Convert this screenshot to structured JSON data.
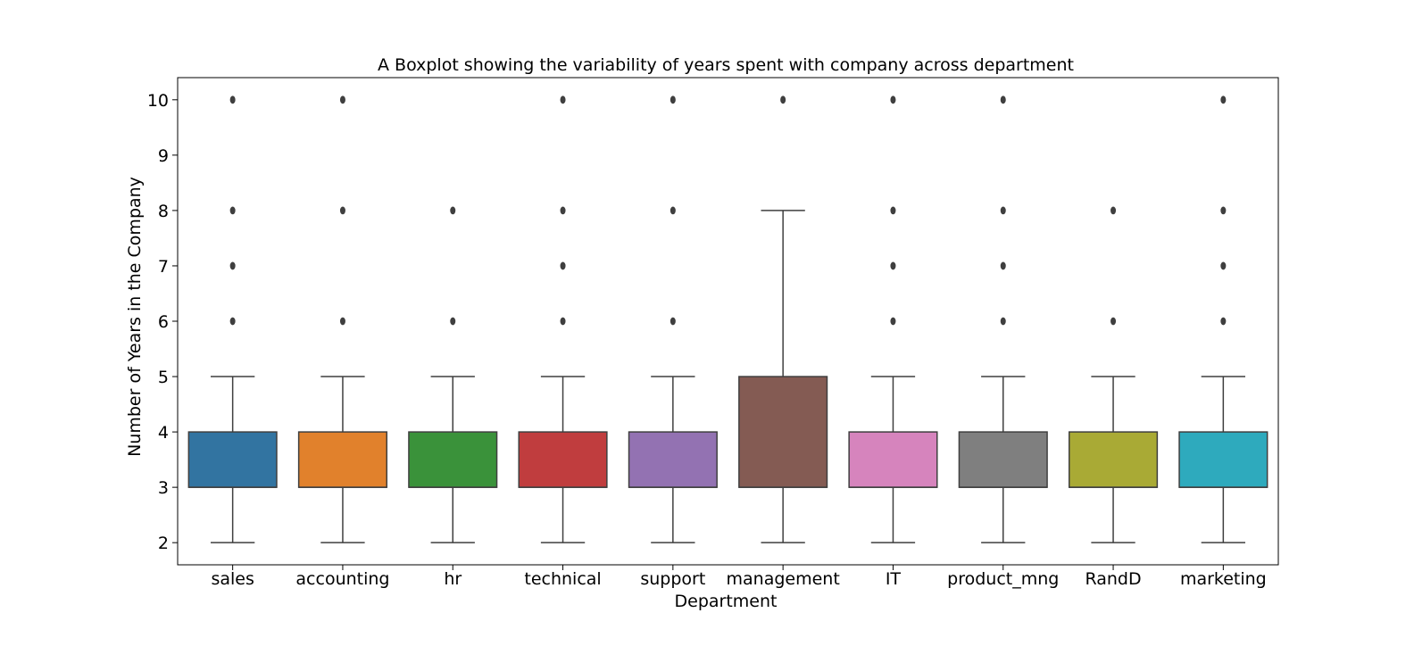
{
  "chart_data": {
    "type": "boxplot",
    "title": "A Boxplot showing the variability of years spent with company across department",
    "xlabel": "Department",
    "ylabel": "Number of Years in the Company",
    "ylim": [
      1.6,
      10.4
    ],
    "yticks": [
      2,
      3,
      4,
      5,
      6,
      7,
      8,
      9,
      10
    ],
    "grid": false,
    "categories": [
      "sales",
      "accounting",
      "hr",
      "technical",
      "support",
      "management",
      "IT",
      "product_mng",
      "RandD",
      "marketing"
    ],
    "colors": [
      "#3274a1",
      "#e1812c",
      "#3a923a",
      "#c03d3e",
      "#9372b2",
      "#845b53",
      "#d684bd",
      "#7f7f7f",
      "#a9aa35",
      "#2eaabd"
    ],
    "boxes": [
      {
        "category": "sales",
        "whisker_low": 2,
        "q1": 3,
        "median": 3,
        "q3": 4,
        "whisker_high": 5,
        "outliers": [
          6,
          7,
          8,
          10
        ]
      },
      {
        "category": "accounting",
        "whisker_low": 2,
        "q1": 3,
        "median": 3,
        "q3": 4,
        "whisker_high": 5,
        "outliers": [
          6,
          8,
          10
        ]
      },
      {
        "category": "hr",
        "whisker_low": 2,
        "q1": 3,
        "median": 3,
        "q3": 4,
        "whisker_high": 5,
        "outliers": [
          6,
          8
        ]
      },
      {
        "category": "technical",
        "whisker_low": 2,
        "q1": 3,
        "median": 3,
        "q3": 4,
        "whisker_high": 5,
        "outliers": [
          6,
          7,
          8,
          10
        ]
      },
      {
        "category": "support",
        "whisker_low": 2,
        "q1": 3,
        "median": 3,
        "q3": 4,
        "whisker_high": 5,
        "outliers": [
          6,
          8,
          10
        ]
      },
      {
        "category": "management",
        "whisker_low": 2,
        "q1": 3,
        "median": 3,
        "q3": 5,
        "whisker_high": 8,
        "outliers": [
          10
        ]
      },
      {
        "category": "IT",
        "whisker_low": 2,
        "q1": 3,
        "median": 3,
        "q3": 4,
        "whisker_high": 5,
        "outliers": [
          6,
          7,
          8,
          10
        ]
      },
      {
        "category": "product_mng",
        "whisker_low": 2,
        "q1": 3,
        "median": 3,
        "q3": 4,
        "whisker_high": 5,
        "outliers": [
          6,
          7,
          8,
          10
        ]
      },
      {
        "category": "RandD",
        "whisker_low": 2,
        "q1": 3,
        "median": 3,
        "q3": 4,
        "whisker_high": 5,
        "outliers": [
          6,
          8
        ]
      },
      {
        "category": "marketing",
        "whisker_low": 2,
        "q1": 3,
        "median": 3,
        "q3": 4,
        "whisker_high": 5,
        "outliers": [
          6,
          7,
          8,
          10
        ]
      }
    ]
  }
}
